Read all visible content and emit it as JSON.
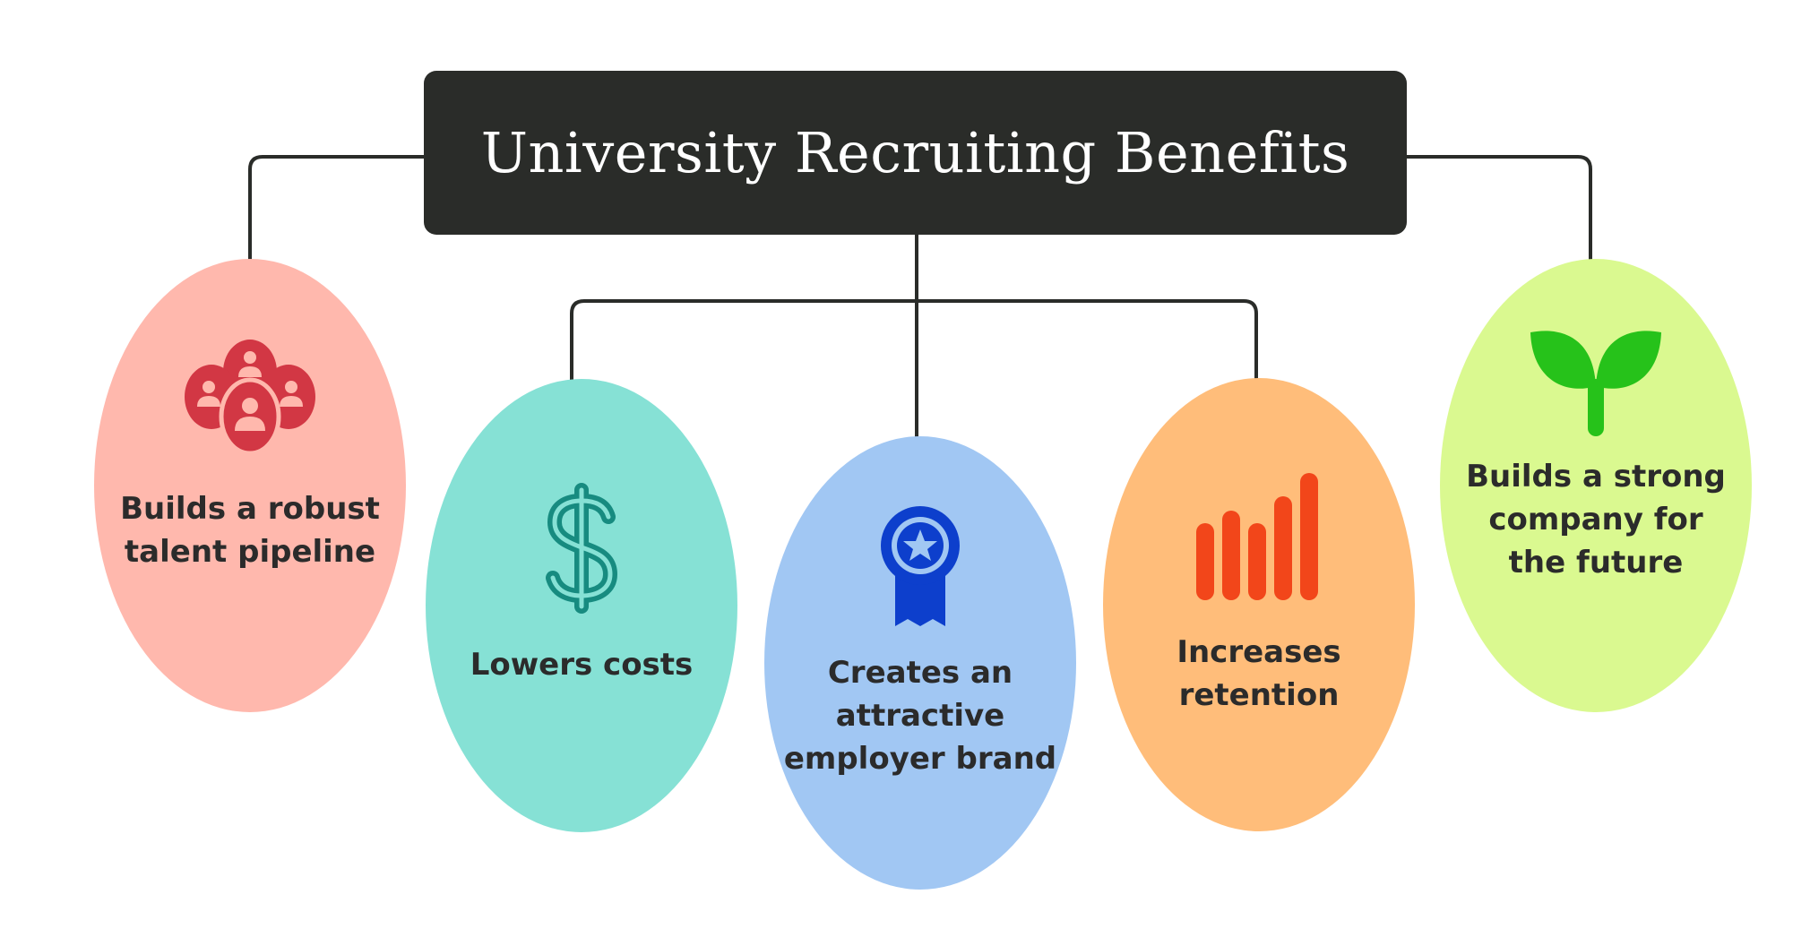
{
  "title": "University Recruiting Benefits",
  "colors": {
    "title_bg": "#2a2c29",
    "connector": "#2a2c29",
    "node_1": "#ffb8ad",
    "node_2": "#86e1d5",
    "node_3": "#a1c7f3",
    "node_4": "#ffbd7a",
    "node_5": "#daf990",
    "icon_people": "#d23744",
    "icon_dollar": "#178b80",
    "icon_award": "#0d3fcc",
    "icon_bars": "#f2461a",
    "icon_sprout": "#26c21a"
  },
  "nodes": [
    {
      "label": "Builds a robust talent pipeline",
      "icon": "people-group-icon"
    },
    {
      "label": "Lowers costs",
      "icon": "dollar-icon"
    },
    {
      "label": "Creates an attractive employer brand",
      "icon": "award-ribbon-icon"
    },
    {
      "label": "Increases retention",
      "icon": "bar-chart-icon"
    },
    {
      "label": "Builds a strong company for the future",
      "icon": "sprout-icon"
    }
  ]
}
